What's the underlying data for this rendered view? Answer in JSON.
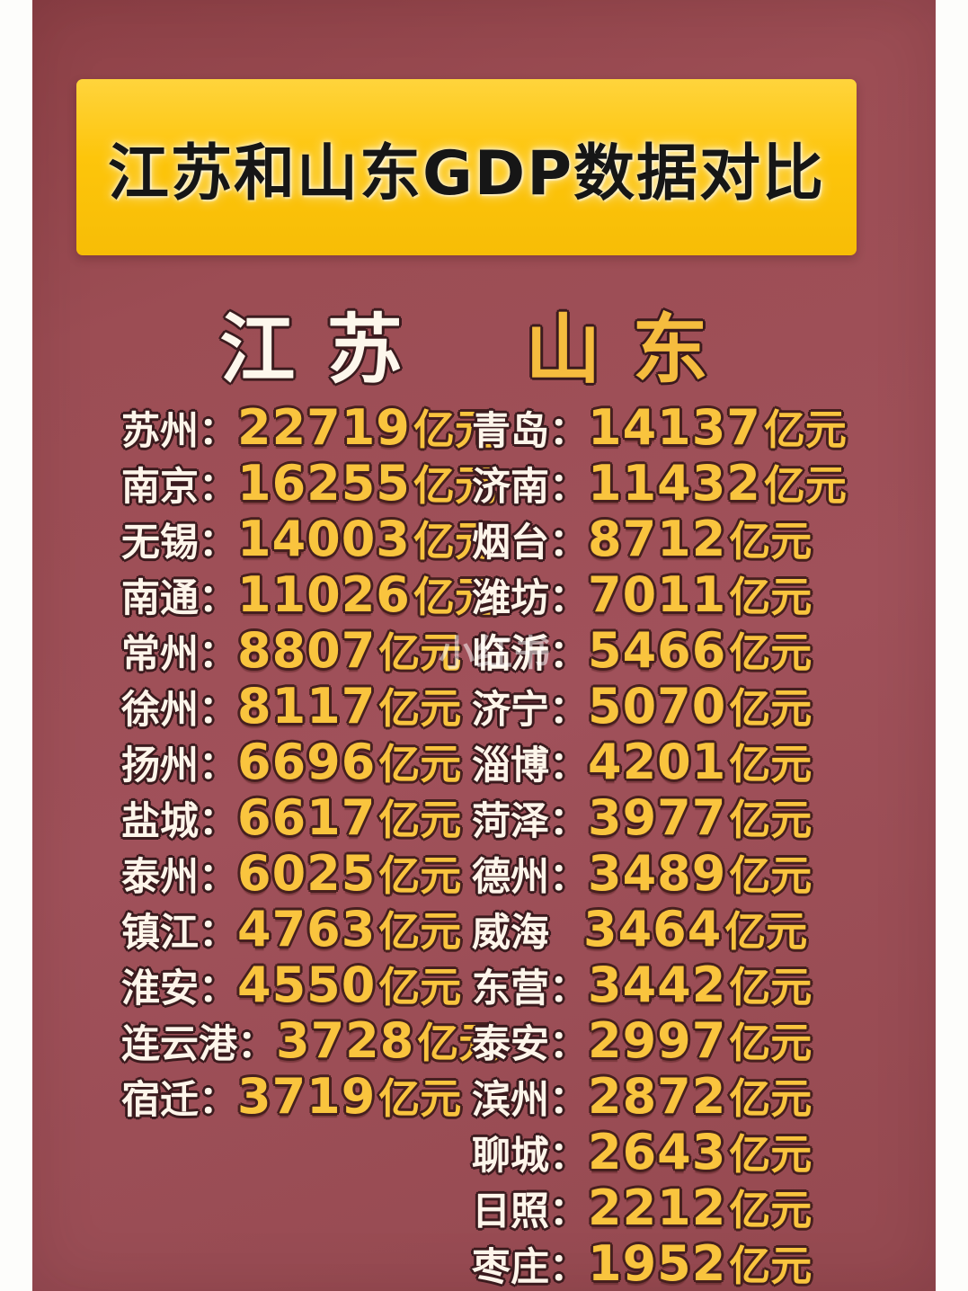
{
  "title": "江苏和山东GDP数据对比",
  "unit": "亿元",
  "watermark": "小红书",
  "colors": {
    "page_background": "#ffffff",
    "panel_background": "#9c4d54",
    "banner_background": "#fdc50b",
    "title_text": "#161616",
    "city_text": "#fdf5ea",
    "value_text": "#f9c43e",
    "jiangsu_header_text": "#fdf7ec",
    "shandong_header_text": "#f5bc3e",
    "text_outline": "#3b1b1e"
  },
  "columns": [
    {
      "header": "江苏",
      "rows": [
        {
          "city": "苏州",
          "sep": "：",
          "value": "22719"
        },
        {
          "city": "南京",
          "sep": "：",
          "value": "16255"
        },
        {
          "city": "无锡",
          "sep": "：",
          "value": "14003"
        },
        {
          "city": "南通",
          "sep": "：",
          "value": "11026"
        },
        {
          "city": "常州",
          "sep": "：",
          "value": "8807"
        },
        {
          "city": "徐州",
          "sep": "：",
          "value": "8117"
        },
        {
          "city": "扬州",
          "sep": "：",
          "value": "6696"
        },
        {
          "city": "盐城",
          "sep": "：",
          "value": "6617"
        },
        {
          "city": "泰州",
          "sep": "：",
          "value": "6025"
        },
        {
          "city": "镇江",
          "sep": "：",
          "value": "4763"
        },
        {
          "city": "淮安",
          "sep": "：",
          "value": "4550"
        },
        {
          "city": "连云港",
          "sep": "：",
          "value": "3728"
        },
        {
          "city": "宿迁",
          "sep": "：",
          "value": "3719"
        }
      ]
    },
    {
      "header": "山东",
      "rows": [
        {
          "city": "青岛",
          "sep": "：",
          "value": "14137"
        },
        {
          "city": "济南",
          "sep": "：",
          "value": "11432"
        },
        {
          "city": "烟台",
          "sep": "：",
          "value": "8712"
        },
        {
          "city": "潍坊",
          "sep": "：",
          "value": "7011"
        },
        {
          "city": "临沂",
          "sep": "：",
          "value": "5466"
        },
        {
          "city": "济宁",
          "sep": "：",
          "value": "5070"
        },
        {
          "city": "淄博",
          "sep": "：",
          "value": "4201"
        },
        {
          "city": "菏泽",
          "sep": "：",
          "value": "3977"
        },
        {
          "city": "德州",
          "sep": "：",
          "value": "3489"
        },
        {
          "city": "威海",
          "sep": " ",
          "value": "3464"
        },
        {
          "city": "东营",
          "sep": "：",
          "value": "3442"
        },
        {
          "city": "泰安",
          "sep": "：",
          "value": "2997"
        },
        {
          "city": "滨州",
          "sep": "：",
          "value": "2872"
        },
        {
          "city": "聊城",
          "sep": "：",
          "value": "2643"
        },
        {
          "city": "日照",
          "sep": "：",
          "value": "2212"
        },
        {
          "city": "枣庄",
          "sep": "：",
          "value": "1952"
        }
      ]
    }
  ],
  "chart_data": {
    "type": "table",
    "title": "江苏和山东GDP数据对比",
    "unit": "亿元",
    "series": [
      {
        "name": "江苏",
        "cities": [
          "苏州",
          "南京",
          "无锡",
          "南通",
          "常州",
          "徐州",
          "扬州",
          "盐城",
          "泰州",
          "镇江",
          "淮安",
          "连云港",
          "宿迁"
        ],
        "values": [
          22719,
          16255,
          14003,
          11026,
          8807,
          8117,
          6696,
          6617,
          6025,
          4763,
          4550,
          3728,
          3719
        ]
      },
      {
        "name": "山东",
        "cities": [
          "青岛",
          "济南",
          "烟台",
          "潍坊",
          "临沂",
          "济宁",
          "淄博",
          "菏泽",
          "德州",
          "威海",
          "东营",
          "泰安",
          "滨州",
          "聊城",
          "日照",
          "枣庄"
        ],
        "values": [
          14137,
          11432,
          8712,
          7011,
          5466,
          5070,
          4201,
          3977,
          3489,
          3464,
          3442,
          2997,
          2872,
          2643,
          2212,
          1952
        ]
      }
    ]
  }
}
